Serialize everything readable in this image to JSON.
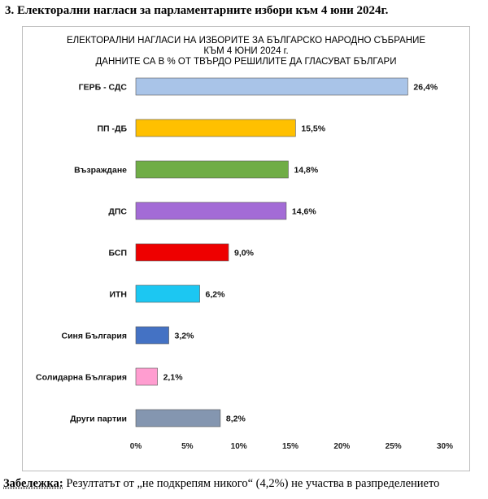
{
  "heading": "3. Електорални нагласи за парламентарните избори към 4 юни 2024г.",
  "chart_data": {
    "type": "bar",
    "orientation": "horizontal",
    "title_lines": [
      "ЕЛЕКТОРАЛНИ НАГЛАСИ НА ИЗБОРИТЕ ЗА БЪЛГАРСКО НАРОДНО СЪБРАНИЕ",
      "КЪМ 4 ЮНИ 2024 г.",
      "ДАННИТЕ СА В % ОТ ТВЪРДО РЕШИЛИТЕ ДА ГЛАСУВАТ БЪЛГАРИ"
    ],
    "categories": [
      "ГЕРБ - СДС",
      "ПП -ДБ",
      "Възраждане",
      "ДПС",
      "БСП",
      "ИТН",
      "Синя България",
      "Солидарна България",
      "Други партии"
    ],
    "values": [
      26.4,
      15.5,
      14.8,
      14.6,
      9.0,
      6.2,
      3.2,
      2.1,
      8.2
    ],
    "value_labels": [
      "26,4%",
      "15,5%",
      "14,8%",
      "14,6%",
      "9,0%",
      "6,2%",
      "3,2%",
      "2,1%",
      "8,2%"
    ],
    "colors": [
      "#a9c4e8",
      "#ffc000",
      "#70ad47",
      "#a36bd6",
      "#ee0000",
      "#1cc7f2",
      "#4472c4",
      "#ff9dd0",
      "#8496b0"
    ],
    "xlim": [
      0,
      30
    ],
    "xticks": [
      0,
      5,
      10,
      15,
      20,
      25,
      30
    ],
    "xtick_labels": [
      "0%",
      "5%",
      "10%",
      "15%",
      "20%",
      "25%",
      "30%"
    ],
    "gridlines": false
  },
  "note": {
    "label": "Забележка:",
    "text": " Резултатът от „не подкрепям никого“ (4,2%) не участва в разпределението"
  }
}
